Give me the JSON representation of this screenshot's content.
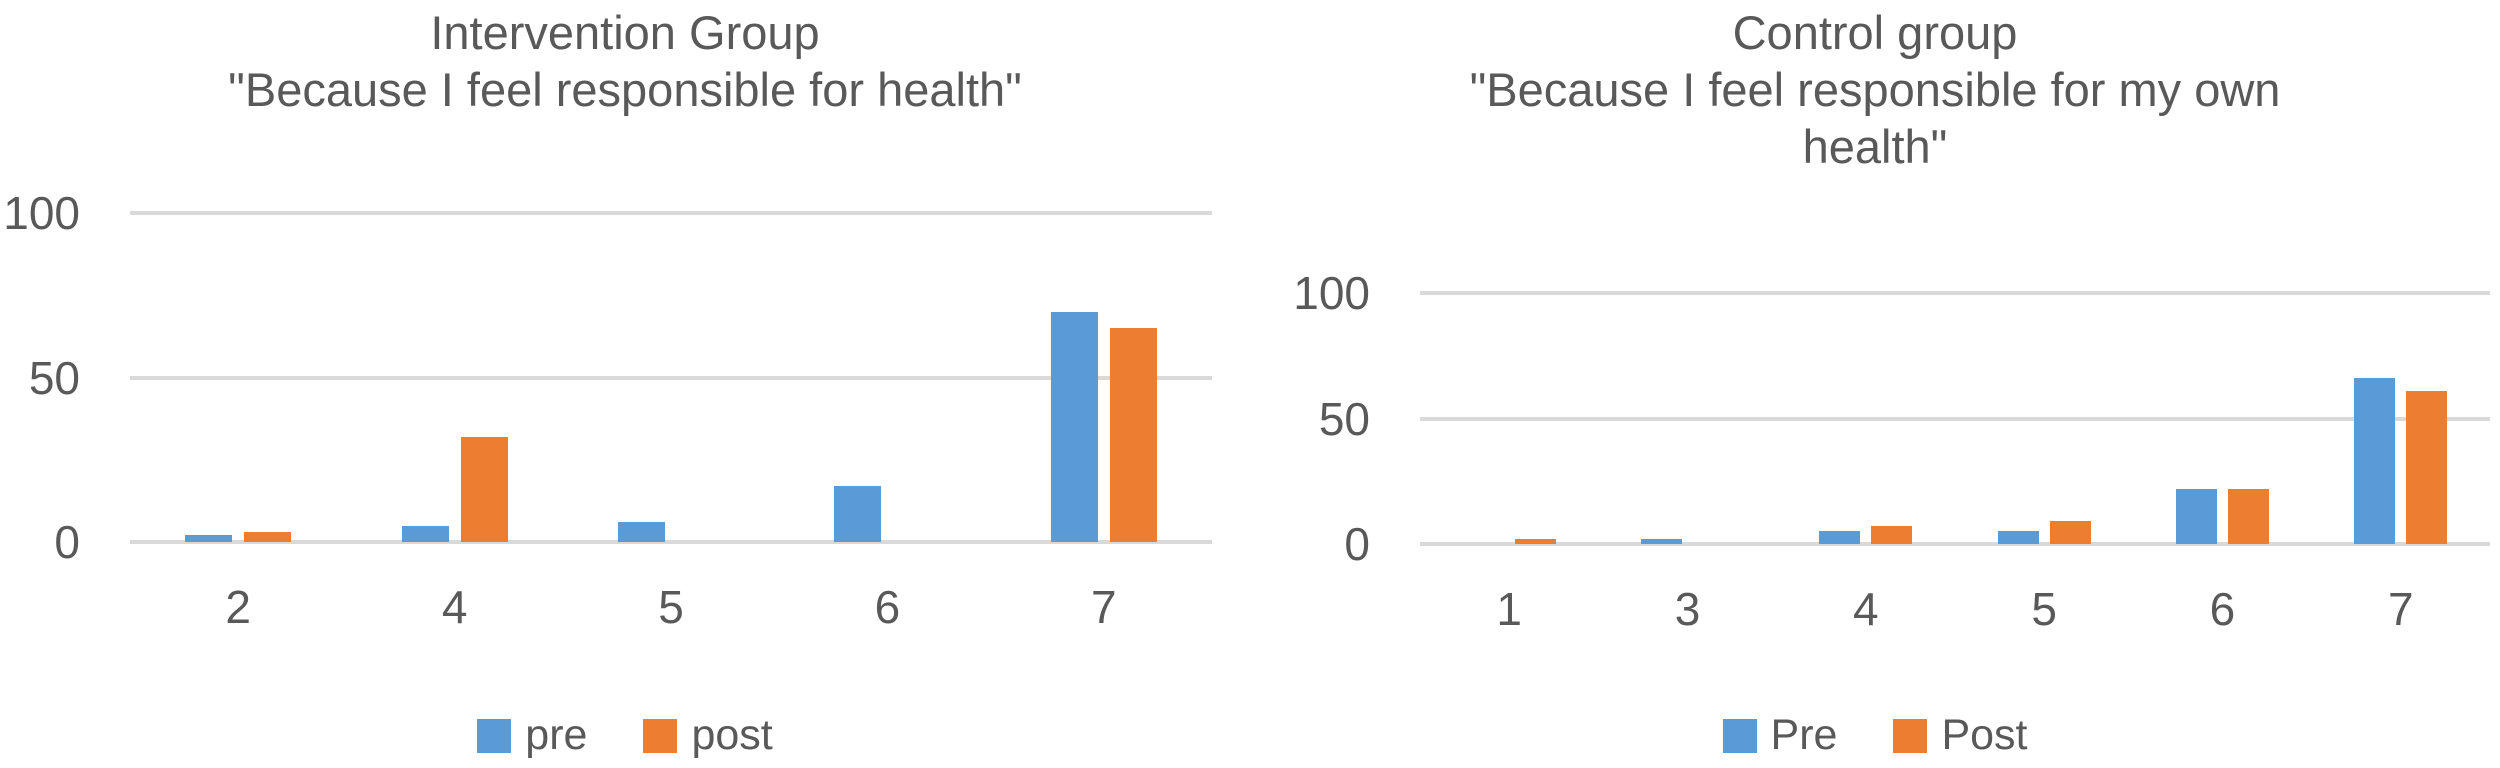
{
  "style": {
    "background": "#FFFFFF",
    "text_color": "#595959",
    "gridline_color": "#D9D9D9",
    "series_blue": "#5B9BD5",
    "series_orange": "#ED7D31"
  },
  "chart_data": [
    {
      "type": "bar",
      "title": "Intervention Group",
      "subtitle_lines": [
        "\"Because I feel responsible for health\""
      ],
      "categories": [
        "2",
        "4",
        "5",
        "6",
        "7"
      ],
      "series": [
        {
          "name": "pre",
          "color": "#5B9BD5",
          "values": [
            2,
            5,
            6,
            17,
            70
          ]
        },
        {
          "name": "post",
          "color": "#ED7D31",
          "values": [
            3,
            32,
            0,
            0,
            65
          ]
        }
      ],
      "xlabel": "",
      "ylabel": "",
      "ylim": [
        0,
        100
      ],
      "yticks": [
        0,
        50,
        100
      ],
      "grid": true,
      "legend_position": "bottom"
    },
    {
      "type": "bar",
      "title": "Control group",
      "subtitle_lines": [
        "\"Because I feel responsible for my own",
        "health\""
      ],
      "categories": [
        "1",
        "3",
        "4",
        "5",
        "6",
        "7"
      ],
      "series": [
        {
          "name": "Pre",
          "color": "#5B9BD5",
          "values": [
            0,
            2,
            5,
            5,
            22,
            66
          ]
        },
        {
          "name": "Post",
          "color": "#ED7D31",
          "values": [
            2,
            0,
            7,
            9,
            22,
            61
          ]
        }
      ],
      "xlabel": "",
      "ylabel": "",
      "ylim": [
        0,
        100
      ],
      "yticks": [
        0,
        50,
        100
      ],
      "grid": true,
      "legend_position": "bottom"
    }
  ]
}
